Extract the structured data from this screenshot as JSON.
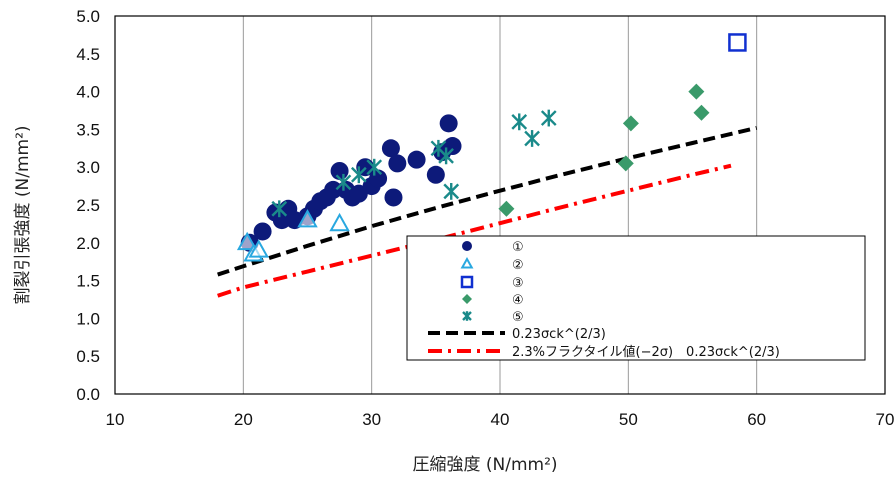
{
  "chart_data": {
    "type": "scatter",
    "xlabel": "圧縮強度 (N/mm²)",
    "ylabel": "割裂引張強度 (N/mm²)",
    "xlim": [
      10,
      70
    ],
    "ylim": [
      0.0,
      5.0
    ],
    "x_ticks": [
      "10",
      "20",
      "30",
      "40",
      "50",
      "60",
      "70"
    ],
    "y_ticks": [
      "0.0",
      "0.5",
      "1.0",
      "1.5",
      "2.0",
      "2.5",
      "3.0",
      "3.5",
      "4.0",
      "4.5",
      "5.0"
    ],
    "grid": "vertical",
    "legend_position": "bottom-right",
    "series": [
      {
        "name": "①",
        "marker": "circle-filled",
        "color": "#0d1a7a",
        "points": [
          [
            20.5,
            2.0
          ],
          [
            21.5,
            2.15
          ],
          [
            22.5,
            2.4
          ],
          [
            23.0,
            2.3
          ],
          [
            23.5,
            2.45
          ],
          [
            24.0,
            2.3
          ],
          [
            25.0,
            2.35
          ],
          [
            25.5,
            2.45
          ],
          [
            26.0,
            2.55
          ],
          [
            26.5,
            2.6
          ],
          [
            27.0,
            2.7
          ],
          [
            27.5,
            2.95
          ],
          [
            28.0,
            2.7
          ],
          [
            28.5,
            2.6
          ],
          [
            29.0,
            2.65
          ],
          [
            29.5,
            3.0
          ],
          [
            30.0,
            2.75
          ],
          [
            30.5,
            2.85
          ],
          [
            31.5,
            3.25
          ],
          [
            31.7,
            2.6
          ],
          [
            32.0,
            3.05
          ],
          [
            33.5,
            3.1
          ],
          [
            35.0,
            2.9
          ],
          [
            35.5,
            3.2
          ],
          [
            36.0,
            3.58
          ],
          [
            36.3,
            3.28
          ]
        ]
      },
      {
        "name": "②",
        "marker": "triangle-open",
        "color": "#29a8e0",
        "points": [
          [
            20.3,
            2.0
          ],
          [
            20.8,
            1.85
          ],
          [
            21.2,
            1.9
          ],
          [
            25.0,
            2.3
          ],
          [
            27.5,
            2.25
          ]
        ]
      },
      {
        "name": "③",
        "marker": "square-open",
        "color": "#1030d0",
        "points": [
          [
            58.5,
            4.65
          ]
        ]
      },
      {
        "name": "④",
        "marker": "diamond-filled",
        "color": "#3a9a6a",
        "points": [
          [
            40.5,
            2.45
          ],
          [
            49.8,
            3.05
          ],
          [
            50.2,
            3.58
          ],
          [
            55.3,
            4.0
          ],
          [
            55.7,
            3.72
          ]
        ]
      },
      {
        "name": "⑤",
        "marker": "asterisk",
        "color": "#1a8a8a",
        "points": [
          [
            22.8,
            2.45
          ],
          [
            27.8,
            2.8
          ],
          [
            29.0,
            2.9
          ],
          [
            30.2,
            3.0
          ],
          [
            35.2,
            3.25
          ],
          [
            35.8,
            3.15
          ],
          [
            36.2,
            2.68
          ],
          [
            41.5,
            3.6
          ],
          [
            42.5,
            3.38
          ],
          [
            43.8,
            3.65
          ]
        ]
      }
    ],
    "lines": [
      {
        "name": "0.23σck^(2/3)",
        "color": "#000000",
        "style": "dashed",
        "x": [
          18,
          20,
          25,
          30,
          35,
          40,
          45,
          50,
          55,
          60
        ],
        "y": [
          1.58,
          1.69,
          1.96,
          2.22,
          2.46,
          2.69,
          2.91,
          3.12,
          3.32,
          3.52
        ]
      },
      {
        "name": "2.3%フラクタイル値(−2σ)　0.23σck^(2/3)",
        "color": "#ff0000",
        "style": "dash-dot",
        "x": [
          18,
          20,
          25,
          30,
          35,
          40,
          45,
          50,
          55,
          58
        ],
        "y": [
          1.3,
          1.41,
          1.62,
          1.83,
          2.04,
          2.26,
          2.48,
          2.69,
          2.9,
          3.02
        ]
      }
    ]
  }
}
